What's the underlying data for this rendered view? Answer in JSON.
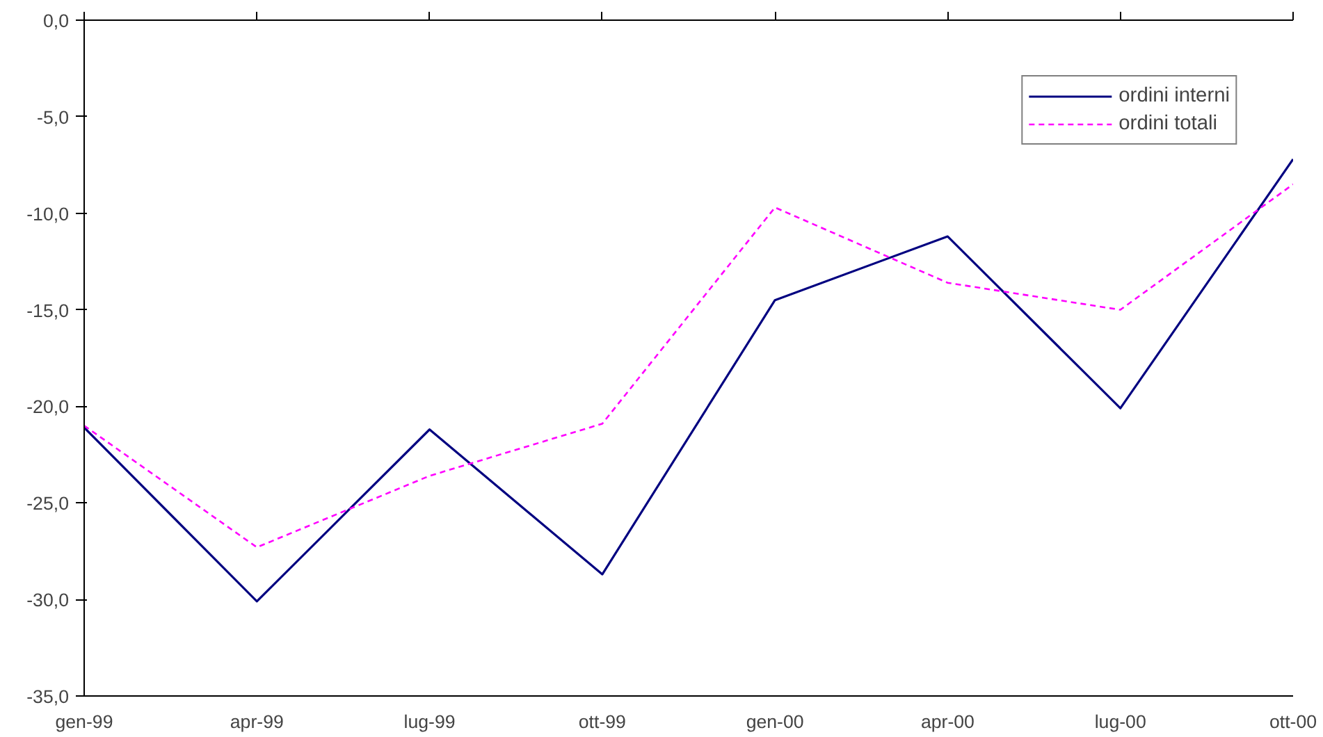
{
  "chart_data": {
    "type": "line",
    "categories": [
      "gen-99",
      "apr-99",
      "lug-99",
      "ott-99",
      "gen-00",
      "apr-00",
      "lug-00",
      "ott-00"
    ],
    "series": [
      {
        "name": "ordini interni",
        "color": "#000080",
        "line_style": "solid",
        "values": [
          -21.1,
          -30.1,
          -21.2,
          -28.7,
          -14.5,
          -11.2,
          -20.1,
          -7.2
        ]
      },
      {
        "name": "ordini totali",
        "color": "#ff00ff",
        "line_style": "dashed",
        "values": [
          -21.0,
          -27.3,
          -23.6,
          -20.9,
          -9.7,
          -13.6,
          -15.0,
          -8.5
        ]
      }
    ],
    "ylim": [
      -35,
      0
    ],
    "yticks": [
      {
        "value": -35,
        "label": "-35,0"
      },
      {
        "value": -30,
        "label": "-30,0"
      },
      {
        "value": -25,
        "label": "-25,0"
      },
      {
        "value": -20,
        "label": "-20,0"
      },
      {
        "value": -15,
        "label": "-15,0"
      },
      {
        "value": -10,
        "label": "-10,0"
      },
      {
        "value": -5,
        "label": "-5,0"
      },
      {
        "value": 0,
        "label": "0,0"
      }
    ],
    "grid": false,
    "legend": "top right",
    "marker": "none"
  }
}
